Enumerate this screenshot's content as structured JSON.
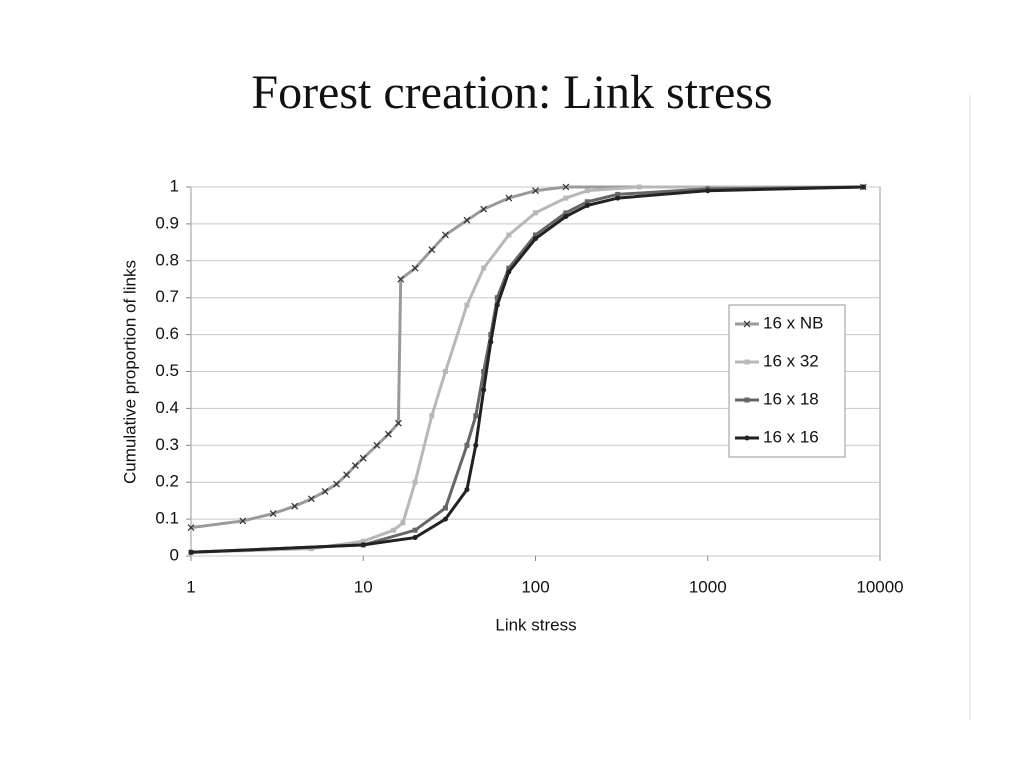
{
  "chart_data": {
    "type": "line",
    "title": "Forest creation: Link stress",
    "x_label": "Link stress",
    "y_label": "Cumulative proportion of links",
    "xscale": "log",
    "xlim": [
      1,
      10000
    ],
    "xticks": [
      1,
      10,
      100,
      1000,
      10000
    ],
    "ylim": [
      0,
      1
    ],
    "yticks": [
      0,
      0.1,
      0.2,
      0.3,
      0.4,
      0.5,
      0.6,
      0.7,
      0.8,
      0.9,
      1
    ],
    "grid": true,
    "legend": "right",
    "series": [
      {
        "name": "16 x NB",
        "color": "#9a9a9a",
        "marker": "x",
        "x": [
          1,
          2,
          3,
          4,
          5,
          6,
          7,
          8,
          9,
          10,
          12,
          14,
          16,
          16.5,
          20,
          25,
          30,
          40,
          50,
          70,
          100,
          150,
          8000
        ],
        "values": [
          0.077,
          0.095,
          0.115,
          0.135,
          0.155,
          0.175,
          0.195,
          0.22,
          0.245,
          0.265,
          0.3,
          0.33,
          0.36,
          0.75,
          0.78,
          0.83,
          0.87,
          0.91,
          0.94,
          0.97,
          0.99,
          1.0,
          1.0
        ]
      },
      {
        "name": "16 x 32",
        "color": "#b8b8b8",
        "marker": "square",
        "x": [
          1,
          5,
          10,
          15,
          17,
          20,
          25,
          30,
          40,
          50,
          70,
          100,
          150,
          200,
          400,
          8000
        ],
        "values": [
          0.01,
          0.02,
          0.04,
          0.07,
          0.09,
          0.2,
          0.38,
          0.5,
          0.68,
          0.78,
          0.87,
          0.93,
          0.97,
          0.99,
          1.0,
          1.0
        ]
      },
      {
        "name": "16 x 18",
        "color": "#666666",
        "marker": "square",
        "x": [
          1,
          10,
          20,
          30,
          40,
          45,
          50,
          55,
          60,
          70,
          100,
          150,
          200,
          300,
          1000,
          8000
        ],
        "values": [
          0.01,
          0.03,
          0.07,
          0.13,
          0.3,
          0.38,
          0.5,
          0.6,
          0.7,
          0.78,
          0.87,
          0.93,
          0.96,
          0.98,
          0.995,
          1.0
        ]
      },
      {
        "name": "16 x 16",
        "color": "#222222",
        "marker": "dot",
        "x": [
          1,
          10,
          20,
          30,
          40,
          45,
          50,
          55,
          60,
          70,
          100,
          150,
          200,
          300,
          1000,
          8000
        ],
        "values": [
          0.01,
          0.03,
          0.05,
          0.1,
          0.18,
          0.3,
          0.45,
          0.58,
          0.68,
          0.77,
          0.86,
          0.92,
          0.95,
          0.97,
          0.99,
          1.0
        ]
      }
    ]
  }
}
